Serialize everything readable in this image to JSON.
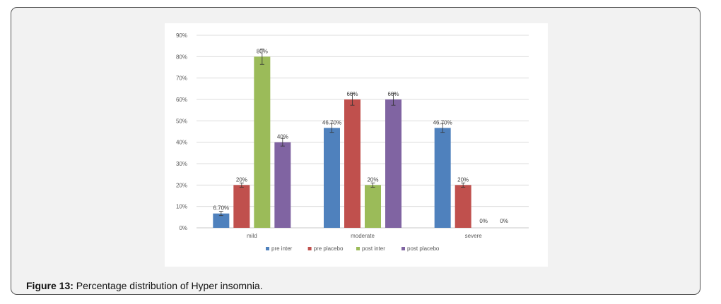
{
  "caption": {
    "label": "Figure 13:",
    "text": " Percentage distribution of Hyper insomnia."
  },
  "chart_data": {
    "type": "bar",
    "categories": [
      "mild",
      "moderate",
      "severe"
    ],
    "series": [
      {
        "name": "pre inter",
        "color": "#4f81bd",
        "values": [
          6.7,
          46.7,
          46.7
        ],
        "labels": [
          "6.70%",
          "46.70%",
          "46.70%"
        ]
      },
      {
        "name": "pre placebo",
        "color": "#c0504d",
        "values": [
          20,
          60,
          20
        ],
        "labels": [
          "20%",
          "60%",
          "20%"
        ]
      },
      {
        "name": "post inter",
        "color": "#9bbb59",
        "values": [
          80,
          20,
          0
        ],
        "labels": [
          "80%",
          "20%",
          "0%"
        ]
      },
      {
        "name": "post placebo",
        "color": "#8064a2",
        "values": [
          40,
          60,
          0
        ],
        "labels": [
          "40%",
          "60%",
          "0%"
        ]
      }
    ],
    "ylim": [
      0,
      90
    ],
    "yticks": [
      "0%",
      "10%",
      "20%",
      "30%",
      "40%",
      "50%",
      "60%",
      "70%",
      "80%",
      "90%"
    ],
    "grid": true,
    "error_bars": true,
    "legend": "bottom"
  }
}
